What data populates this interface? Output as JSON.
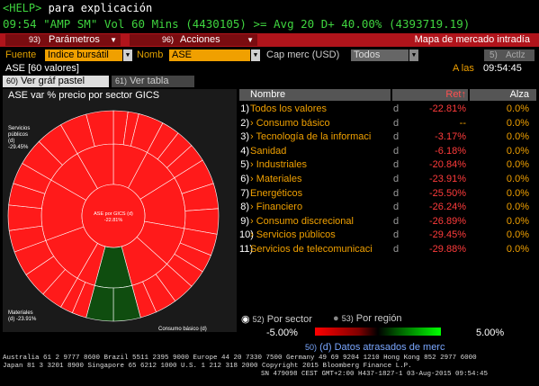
{
  "help_line": {
    "help_key": "<HELP>",
    "text": "para explicación"
  },
  "command_line": "09:54 \"AMP SM\" Vol 60 Mins (4430105) >= Avg 20 D+ 40.00% (4393719.19)",
  "menu": {
    "parametros": "Parámetros",
    "parametros_key": "93)",
    "acciones": "Acciones",
    "acciones_key": "96)",
    "title": "Mapa de mercado intradía"
  },
  "filters": {
    "fuente_label": "Fuente",
    "fuente_value": "Indice bursátil",
    "nomb_label": "Nomb",
    "nomb_value": "ASE",
    "cap_label": "Cap merc (USD)",
    "cap_value": "Todos",
    "actlz_key": "5)",
    "actlz_label": "Actlz"
  },
  "status": {
    "index_label": "ASE [60 valores]",
    "time_label": "A las",
    "time": "09:54:45"
  },
  "tabs": [
    {
      "key": "60)",
      "label": "Ver gráf pastel"
    },
    {
      "key": "61)",
      "label": "Ver tabla"
    }
  ],
  "chart": {
    "title": "ASE var % precio por sector GICS",
    "center_label": "ASE por GICS (d)",
    "center_value": "-22.81%",
    "label_top": [
      "Servicios",
      "públicos",
      "(d)",
      "-29.45%"
    ],
    "label_bottom": [
      "Materiales",
      "(d) -23.91%"
    ],
    "label_bottom_right": "Consumo básico (d)"
  },
  "table": {
    "headers": {
      "name": "Nombre",
      "ret": "Ret↑",
      "alza": "Alza"
    },
    "rows": [
      {
        "idx": "1)",
        "name": "Todos los valores",
        "d": "d",
        "ret": "-22.81%",
        "alza": "0.0%"
      },
      {
        "idx": "2)",
        "name": "› Consumo básico",
        "d": "d",
        "ret": "--",
        "alza": "0.0%"
      },
      {
        "idx": "3)",
        "name": "› Tecnología de la informaci",
        "d": "d",
        "ret": "-3.17%",
        "alza": "0.0%"
      },
      {
        "idx": "4)",
        "name": "Sanidad",
        "d": "d",
        "ret": "-6.18%",
        "alza": "0.0%"
      },
      {
        "idx": "5)",
        "name": "› Industriales",
        "d": "d",
        "ret": "-20.84%",
        "alza": "0.0%"
      },
      {
        "idx": "6)",
        "name": "› Materiales",
        "d": "d",
        "ret": "-23.91%",
        "alza": "0.0%"
      },
      {
        "idx": "7)",
        "name": "Energéticos",
        "d": "d",
        "ret": "-25.50%",
        "alza": "0.0%"
      },
      {
        "idx": "8)",
        "name": "› Financiero",
        "d": "d",
        "ret": "-26.24%",
        "alza": "0.0%"
      },
      {
        "idx": "9)",
        "name": "› Consumo discrecional",
        "d": "d",
        "ret": "-26.89%",
        "alza": "0.0%"
      },
      {
        "idx": "10)",
        "name": "› Servicios públicos",
        "d": "d",
        "ret": "-29.45%",
        "alza": "0.0%"
      },
      {
        "idx": "11)",
        "name": "Servicios de telecomunicaci",
        "d": "d",
        "ret": "-29.88%",
        "alza": "0.0%"
      }
    ]
  },
  "grouping": {
    "sector_key": "52)",
    "sector_label": "Por sector",
    "region_key": "53)",
    "region_label": "Por región"
  },
  "legend": {
    "min": "-5.00%",
    "max": "5.00%"
  },
  "delayed": {
    "key": "50)",
    "text": "(d) Datos atrasados de merc"
  },
  "footer": {
    "line1": "Australia 61 2 9777 8600 Brazil 5511 2395 9000 Europe 44 20 7330 7500 Germany 49 69 9204 1210 Hong Kong 852 2977 6000",
    "line2": "Japan 81 3 3201 8900          Singapore 65 6212 1000          U.S. 1 212 318 2000          Copyright 2015 Bloomberg Finance L.P.",
    "line3": "SN 479098 CEST GMT+2:00 H437-1827-1 03-Aug-2015 09:54:45"
  },
  "colors": {
    "neg": "#ff1a1a",
    "pos": "#0f4d0f",
    "accent": "#f0a000",
    "menu": "#b0141b"
  }
}
